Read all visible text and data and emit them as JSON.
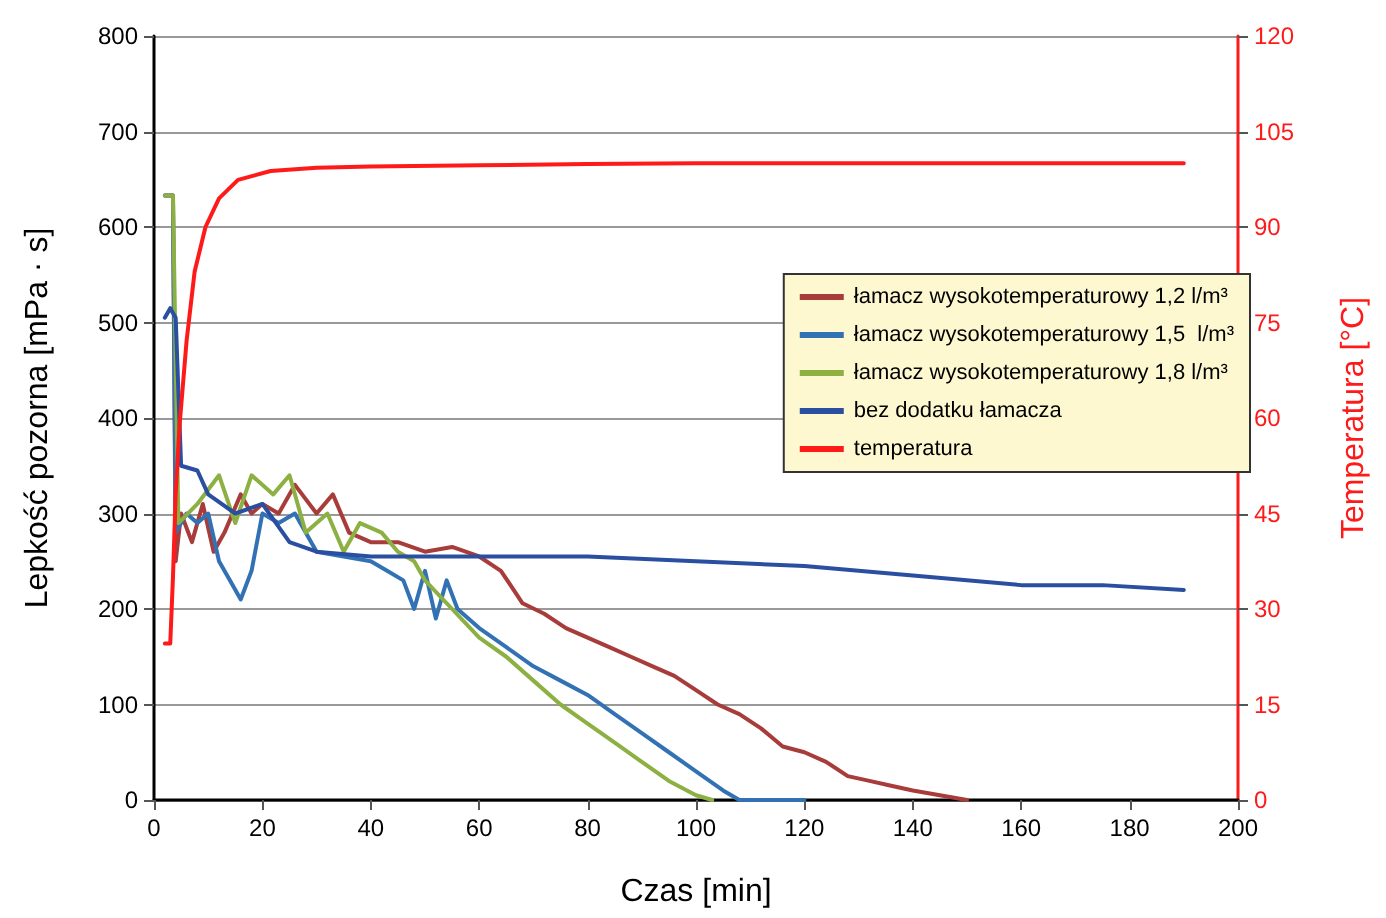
{
  "chart_data": {
    "type": "line",
    "xlabel": "Czas [min]",
    "ylabel": "Lepkość pozorna [mPa · s]",
    "y2label": "Temperatura [°C]",
    "xlim": [
      0,
      200
    ],
    "xticks": [
      0,
      20,
      40,
      60,
      80,
      100,
      120,
      140,
      160,
      180,
      200
    ],
    "ylim": [
      0,
      800
    ],
    "yticks": [
      0,
      100,
      200,
      300,
      400,
      500,
      600,
      700,
      800
    ],
    "y2lim": [
      0,
      120
    ],
    "y2ticks": [
      0,
      15,
      30,
      45,
      60,
      75,
      90,
      105,
      120
    ],
    "grid": "y",
    "legend": "right",
    "marker": "none",
    "line_style": "solid",
    "series": [
      {
        "name": "łamacz wysokotemperaturowy 1,2 l/m³",
        "color": "#a83c3a",
        "x": [
          2,
          3.5,
          4,
          5,
          7,
          9,
          11,
          13,
          16,
          18,
          20,
          23,
          26,
          30,
          33,
          36,
          40,
          45,
          50,
          55,
          60,
          64,
          68,
          72,
          76,
          80,
          84,
          88,
          92,
          96,
          100,
          104,
          108,
          112,
          116,
          120,
          124,
          128,
          132,
          136,
          140,
          145,
          150
        ],
        "values": [
          633,
          633,
          250,
          300,
          270,
          310,
          260,
          280,
          320,
          300,
          310,
          300,
          330,
          300,
          320,
          280,
          270,
          270,
          260,
          265,
          255,
          240,
          206,
          195,
          180,
          170,
          160,
          150,
          140,
          130,
          115,
          100,
          90,
          75,
          56,
          50,
          40,
          25,
          20,
          15,
          10,
          5,
          0
        ]
      },
      {
        "name": "łamacz wysokotemperaturowy 1,5  l/m³",
        "color": "#3272b4",
        "x": [
          2,
          3.5,
          4,
          6,
          8,
          10,
          12,
          14,
          16,
          18,
          20,
          23,
          26,
          30,
          35,
          40,
          43,
          46,
          48,
          50,
          52,
          54,
          56,
          58,
          60,
          65,
          70,
          75,
          80,
          85,
          90,
          95,
          100,
          105,
          108,
          120
        ],
        "values": [
          633,
          633,
          280,
          300,
          290,
          300,
          250,
          230,
          210,
          240,
          300,
          290,
          300,
          260,
          255,
          250,
          240,
          230,
          200,
          240,
          190,
          230,
          200,
          190,
          180,
          160,
          140,
          125,
          110,
          90,
          70,
          50,
          30,
          10,
          0,
          0
        ]
      },
      {
        "name": "łamacz wysokotemperaturowy 1,8 l/m³",
        "color": "#8db042",
        "x": [
          2,
          3.5,
          4.5,
          8,
          12,
          15,
          18,
          22,
          25,
          28,
          32,
          35,
          38,
          42,
          45,
          48,
          50,
          55,
          60,
          65,
          70,
          75,
          80,
          85,
          90,
          95,
          100,
          103
        ],
        "values": [
          633,
          633,
          290,
          310,
          340,
          290,
          340,
          320,
          340,
          280,
          300,
          260,
          290,
          280,
          260,
          250,
          230,
          200,
          170,
          150,
          125,
          100,
          80,
          60,
          40,
          20,
          5,
          0
        ]
      },
      {
        "name": "bez dodatku łamacza",
        "color": "#2a4fa0",
        "x": [
          2,
          3,
          4,
          5,
          8,
          10,
          15,
          20,
          25,
          30,
          40,
          60,
          80,
          100,
          120,
          140,
          160,
          175,
          190
        ],
        "values": [
          505,
          515,
          505,
          350,
          345,
          320,
          300,
          310,
          270,
          260,
          255,
          255,
          255,
          250,
          245,
          235,
          225,
          225,
          220
        ]
      },
      {
        "name": "temperatura",
        "color": "#ff1a1a",
        "axis": "y2",
        "x": [
          2,
          3,
          3.5,
          4,
          4.7,
          6,
          7.5,
          9.5,
          12,
          15.5,
          21.5,
          30,
          40,
          60,
          80,
          100,
          140,
          190
        ],
        "values": [
          24.6,
          24.6,
          35,
          48,
          58.7,
          72,
          83,
          90,
          94.5,
          97.4,
          98.8,
          99.3,
          99.5,
          99.7,
          99.9,
          100,
          100,
          100
        ]
      }
    ]
  }
}
